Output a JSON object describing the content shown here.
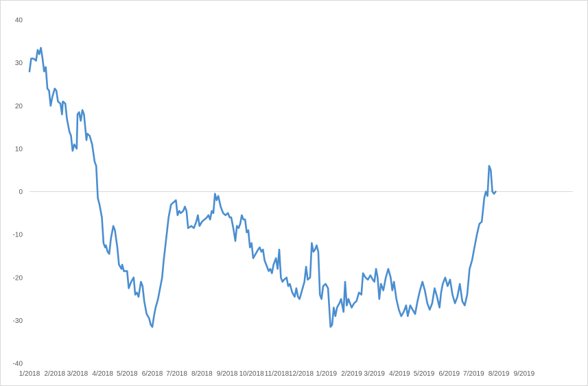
{
  "chart_data": {
    "type": "line",
    "title": "",
    "xlabel": "",
    "ylabel": "",
    "ylim": [
      -40,
      40
    ],
    "y_ticks": [
      40,
      30,
      20,
      10,
      0,
      -10,
      -20,
      -30,
      -40
    ],
    "x_range": [
      "2018-01-01",
      "2019-10-31"
    ],
    "x_tick_labels": [
      {
        "date": "2018-01-01",
        "label": "1/2018"
      },
      {
        "date": "2018-02-01",
        "label": "2/2018"
      },
      {
        "date": "2018-03-01",
        "label": "3/2018"
      },
      {
        "date": "2018-04-01",
        "label": "4/2018"
      },
      {
        "date": "2018-05-01",
        "label": "5/2018"
      },
      {
        "date": "2018-06-01",
        "label": "6/2018"
      },
      {
        "date": "2018-07-01",
        "label": "7/2018"
      },
      {
        "date": "2018-08-01",
        "label": "8/2018"
      },
      {
        "date": "2018-09-01",
        "label": "9/2018"
      },
      {
        "date": "2018-10-01",
        "label": "10/2018"
      },
      {
        "date": "2018-11-01",
        "label": "11/2018"
      },
      {
        "date": "2018-12-01",
        "label": "12/2018"
      },
      {
        "date": "2019-01-01",
        "label": "1/2019"
      },
      {
        "date": "2019-02-01",
        "label": "2/2019"
      },
      {
        "date": "2019-03-01",
        "label": "3/2019"
      },
      {
        "date": "2019-04-01",
        "label": "4/2019"
      },
      {
        "date": "2019-05-01",
        "label": "5/2019"
      },
      {
        "date": "2019-06-01",
        "label": "6/2019"
      },
      {
        "date": "2019-07-01",
        "label": "7/2019"
      },
      {
        "date": "2019-08-01",
        "label": "8/2019"
      },
      {
        "date": "2019-09-01",
        "label": "9/2019"
      }
    ],
    "grid": false,
    "zero_line": true,
    "legend": "none",
    "line_color": "#4a8ed0",
    "zero_line_color": "#d9d9d9",
    "series": [
      {
        "points": [
          [
            "2018-01-01",
            28
          ],
          [
            "2018-01-03",
            31
          ],
          [
            "2018-01-06",
            31
          ],
          [
            "2018-01-09",
            30.5
          ],
          [
            "2018-01-11",
            33
          ],
          [
            "2018-01-13",
            32
          ],
          [
            "2018-01-15",
            33.5
          ],
          [
            "2018-01-17",
            31
          ],
          [
            "2018-01-19",
            28
          ],
          [
            "2018-01-21",
            29
          ],
          [
            "2018-01-23",
            24
          ],
          [
            "2018-01-25",
            23.5
          ],
          [
            "2018-01-27",
            20
          ],
          [
            "2018-01-29",
            22
          ],
          [
            "2018-02-01",
            24
          ],
          [
            "2018-02-03",
            23.5
          ],
          [
            "2018-02-05",
            21
          ],
          [
            "2018-02-08",
            20.5
          ],
          [
            "2018-02-10",
            18
          ],
          [
            "2018-02-11",
            21
          ],
          [
            "2018-02-14",
            20.5
          ],
          [
            "2018-02-16",
            17
          ],
          [
            "2018-02-19",
            14
          ],
          [
            "2018-02-21",
            13
          ],
          [
            "2018-02-23",
            9.5
          ],
          [
            "2018-02-25",
            11
          ],
          [
            "2018-02-28",
            10
          ],
          [
            "2018-03-01",
            18
          ],
          [
            "2018-03-03",
            18.5
          ],
          [
            "2018-03-05",
            16.5
          ],
          [
            "2018-03-07",
            19
          ],
          [
            "2018-03-09",
            18
          ],
          [
            "2018-03-12",
            12
          ],
          [
            "2018-03-13",
            13.5
          ],
          [
            "2018-03-16",
            13
          ],
          [
            "2018-03-19",
            11
          ],
          [
            "2018-03-22",
            7
          ],
          [
            "2018-03-24",
            6
          ],
          [
            "2018-03-26",
            -1.5
          ],
          [
            "2018-03-28",
            -3
          ],
          [
            "2018-03-31",
            -6
          ],
          [
            "2018-04-02",
            -12
          ],
          [
            "2018-04-04",
            -13
          ],
          [
            "2018-04-05",
            -12.5
          ],
          [
            "2018-04-07",
            -14
          ],
          [
            "2018-04-09",
            -14.5
          ],
          [
            "2018-04-11",
            -11
          ],
          [
            "2018-04-14",
            -8
          ],
          [
            "2018-04-16",
            -9
          ],
          [
            "2018-04-19",
            -13
          ],
          [
            "2018-04-21",
            -17
          ],
          [
            "2018-04-24",
            -18
          ],
          [
            "2018-04-25",
            -17
          ],
          [
            "2018-04-27",
            -18.5
          ],
          [
            "2018-05-01",
            -18.5
          ],
          [
            "2018-05-03",
            -22.5
          ],
          [
            "2018-05-06",
            -21
          ],
          [
            "2018-05-09",
            -20
          ],
          [
            "2018-05-11",
            -24
          ],
          [
            "2018-05-13",
            -23.5
          ],
          [
            "2018-05-15",
            -24.5
          ],
          [
            "2018-05-18",
            -21
          ],
          [
            "2018-05-20",
            -22
          ],
          [
            "2018-05-22",
            -25.5
          ],
          [
            "2018-05-25",
            -28.5
          ],
          [
            "2018-05-28",
            -29.5
          ],
          [
            "2018-05-30",
            -31
          ],
          [
            "2018-06-01",
            -31.5
          ],
          [
            "2018-06-03",
            -29
          ],
          [
            "2018-06-05",
            -27
          ],
          [
            "2018-06-08",
            -25
          ],
          [
            "2018-06-11",
            -22
          ],
          [
            "2018-06-13",
            -20
          ],
          [
            "2018-06-15",
            -16
          ],
          [
            "2018-06-18",
            -11
          ],
          [
            "2018-06-21",
            -6
          ],
          [
            "2018-06-24",
            -3
          ],
          [
            "2018-06-27",
            -2.5
          ],
          [
            "2018-06-30",
            -2
          ],
          [
            "2018-07-02",
            -5.5
          ],
          [
            "2018-07-04",
            -4.5
          ],
          [
            "2018-07-06",
            -5
          ],
          [
            "2018-07-09",
            -4.5
          ],
          [
            "2018-07-11",
            -3.5
          ],
          [
            "2018-07-13",
            -4.5
          ],
          [
            "2018-07-15",
            -8.5
          ],
          [
            "2018-07-19",
            -8
          ],
          [
            "2018-07-22",
            -8.5
          ],
          [
            "2018-07-25",
            -7
          ],
          [
            "2018-07-27",
            -5.5
          ],
          [
            "2018-07-29",
            -8
          ],
          [
            "2018-08-01",
            -7
          ],
          [
            "2018-08-04",
            -6.5
          ],
          [
            "2018-08-07",
            -6
          ],
          [
            "2018-08-09",
            -5.5
          ],
          [
            "2018-08-11",
            -6.5
          ],
          [
            "2018-08-13",
            -4.5
          ],
          [
            "2018-08-15",
            -5
          ],
          [
            "2018-08-17",
            -0.5
          ],
          [
            "2018-08-19",
            -2
          ],
          [
            "2018-08-21",
            -1
          ],
          [
            "2018-08-24",
            -3.5
          ],
          [
            "2018-08-27",
            -5
          ],
          [
            "2018-08-30",
            -5.5
          ],
          [
            "2018-09-02",
            -5
          ],
          [
            "2018-09-04",
            -6
          ],
          [
            "2018-09-06",
            -6
          ],
          [
            "2018-09-09",
            -9
          ],
          [
            "2018-09-11",
            -11.5
          ],
          [
            "2018-09-13",
            -8
          ],
          [
            "2018-09-15",
            -8.5
          ],
          [
            "2018-09-17",
            -7.5
          ],
          [
            "2018-09-19",
            -5.5
          ],
          [
            "2018-09-21",
            -6.5
          ],
          [
            "2018-09-23",
            -6.5
          ],
          [
            "2018-09-25",
            -9.5
          ],
          [
            "2018-09-27",
            -9
          ],
          [
            "2018-09-29",
            -13
          ],
          [
            "2018-10-01",
            -12
          ],
          [
            "2018-10-03",
            -15.5
          ],
          [
            "2018-10-06",
            -14.5
          ],
          [
            "2018-10-09",
            -13.5
          ],
          [
            "2018-10-11",
            -13
          ],
          [
            "2018-10-13",
            -14
          ],
          [
            "2018-10-15",
            -13.5
          ],
          [
            "2018-10-17",
            -16
          ],
          [
            "2018-10-20",
            -17.5
          ],
          [
            "2018-10-22",
            -18.5
          ],
          [
            "2018-10-24",
            -18
          ],
          [
            "2018-10-26",
            -19
          ],
          [
            "2018-10-28",
            -17
          ],
          [
            "2018-10-31",
            -15.5
          ],
          [
            "2018-11-02",
            -18
          ],
          [
            "2018-11-04",
            -13.5
          ],
          [
            "2018-11-06",
            -20
          ],
          [
            "2018-11-08",
            -21
          ],
          [
            "2018-11-10",
            -20.5
          ],
          [
            "2018-11-13",
            -20
          ],
          [
            "2018-11-15",
            -22
          ],
          [
            "2018-11-17",
            -21.5
          ],
          [
            "2018-11-20",
            -23.5
          ],
          [
            "2018-11-23",
            -24.5
          ],
          [
            "2018-11-25",
            -22.5
          ],
          [
            "2018-11-27",
            -24.5
          ],
          [
            "2018-11-29",
            -25
          ],
          [
            "2018-12-02",
            -23
          ],
          [
            "2018-12-05",
            -21
          ],
          [
            "2018-12-07",
            -17.5
          ],
          [
            "2018-12-09",
            -20.5
          ],
          [
            "2018-12-12",
            -20
          ],
          [
            "2018-12-14",
            -12
          ],
          [
            "2018-12-16",
            -14
          ],
          [
            "2018-12-18",
            -13.5
          ],
          [
            "2018-12-20",
            -12.5
          ],
          [
            "2018-12-22",
            -14
          ],
          [
            "2018-12-24",
            -24
          ],
          [
            "2018-12-26",
            -25
          ],
          [
            "2018-12-28",
            -22
          ],
          [
            "2018-12-31",
            -21.5
          ],
          [
            "2019-01-03",
            -22.5
          ],
          [
            "2019-01-06",
            -31.5
          ],
          [
            "2019-01-08",
            -31
          ],
          [
            "2019-01-10",
            -27
          ],
          [
            "2019-01-12",
            -29
          ],
          [
            "2019-01-14",
            -27
          ],
          [
            "2019-01-17",
            -26
          ],
          [
            "2019-01-19",
            -25
          ],
          [
            "2019-01-22",
            -28
          ],
          [
            "2019-01-24",
            -21
          ],
          [
            "2019-01-26",
            -26.5
          ],
          [
            "2019-01-28",
            -25
          ],
          [
            "2019-02-01",
            -27
          ],
          [
            "2019-02-04",
            -26
          ],
          [
            "2019-02-07",
            -25.5
          ],
          [
            "2019-02-10",
            -23.5
          ],
          [
            "2019-02-13",
            -24
          ],
          [
            "2019-02-15",
            -19
          ],
          [
            "2019-02-18",
            -20
          ],
          [
            "2019-02-21",
            -20.5
          ],
          [
            "2019-02-24",
            -19.5
          ],
          [
            "2019-02-27",
            -20.5
          ],
          [
            "2019-03-01",
            -21
          ],
          [
            "2019-03-03",
            -18
          ],
          [
            "2019-03-05",
            -20
          ],
          [
            "2019-03-07",
            -25
          ],
          [
            "2019-03-09",
            -21.5
          ],
          [
            "2019-03-12",
            -23
          ],
          [
            "2019-03-15",
            -20
          ],
          [
            "2019-03-18",
            -18
          ],
          [
            "2019-03-21",
            -20
          ],
          [
            "2019-03-23",
            -23
          ],
          [
            "2019-03-25",
            -21
          ],
          [
            "2019-03-28",
            -25
          ],
          [
            "2019-03-31",
            -27.5
          ],
          [
            "2019-04-03",
            -29
          ],
          [
            "2019-04-06",
            -28
          ],
          [
            "2019-04-09",
            -26.5
          ],
          [
            "2019-04-11",
            -29
          ],
          [
            "2019-04-14",
            -26.5
          ],
          [
            "2019-04-17",
            -27.5
          ],
          [
            "2019-04-20",
            -28.5
          ],
          [
            "2019-04-23",
            -25.5
          ],
          [
            "2019-04-26",
            -23
          ],
          [
            "2019-04-29",
            -21
          ],
          [
            "2019-05-02",
            -23
          ],
          [
            "2019-05-05",
            -26
          ],
          [
            "2019-05-08",
            -27.5
          ],
          [
            "2019-05-11",
            -26
          ],
          [
            "2019-05-14",
            -22.5
          ],
          [
            "2019-05-17",
            -24.5
          ],
          [
            "2019-05-20",
            -27
          ],
          [
            "2019-05-22",
            -23.5
          ],
          [
            "2019-05-24",
            -21.5
          ],
          [
            "2019-05-27",
            -20
          ],
          [
            "2019-05-30",
            -22
          ],
          [
            "2019-06-02",
            -20.5
          ],
          [
            "2019-06-05",
            -24
          ],
          [
            "2019-06-08",
            -26
          ],
          [
            "2019-06-11",
            -24.5
          ],
          [
            "2019-06-14",
            -21.5
          ],
          [
            "2019-06-17",
            -25.5
          ],
          [
            "2019-06-20",
            -26.5
          ],
          [
            "2019-06-23",
            -24
          ],
          [
            "2019-06-26",
            -18
          ],
          [
            "2019-06-29",
            -16
          ],
          [
            "2019-07-02",
            -13
          ],
          [
            "2019-07-05",
            -10
          ],
          [
            "2019-07-08",
            -7.5
          ],
          [
            "2019-07-11",
            -7
          ],
          [
            "2019-07-14",
            -1.5
          ],
          [
            "2019-07-16",
            0
          ],
          [
            "2019-07-18",
            -1
          ],
          [
            "2019-07-20",
            6
          ],
          [
            "2019-07-22",
            5
          ],
          [
            "2019-07-24",
            0
          ],
          [
            "2019-07-26",
            -0.5
          ],
          [
            "2019-07-28",
            0
          ]
        ]
      }
    ]
  }
}
